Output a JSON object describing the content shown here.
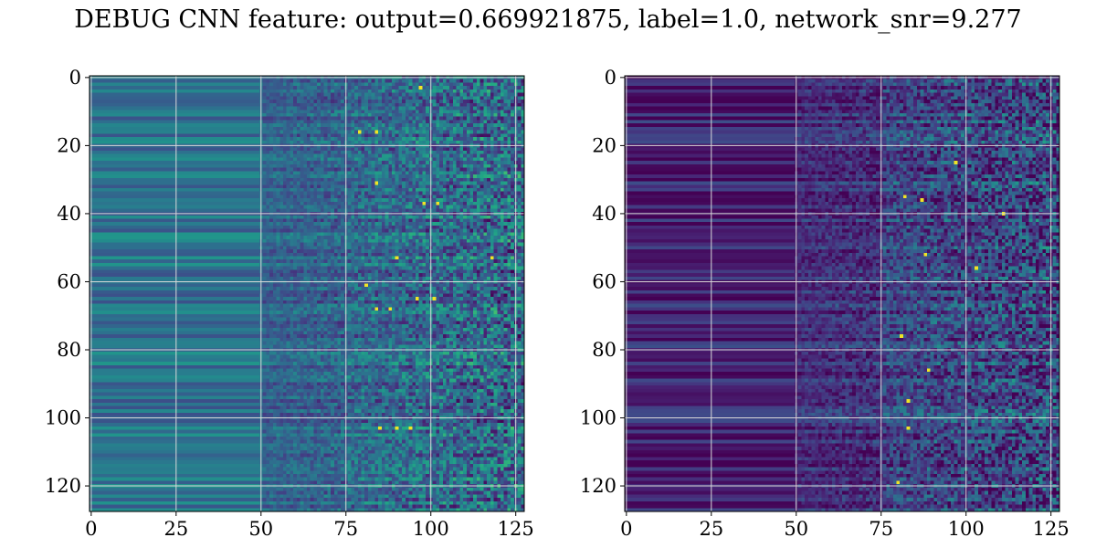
{
  "figure": {
    "title": "DEBUG CNN feature: output=0.669921875, label=1.0, network_snr=9.277"
  },
  "chart_data": [
    {
      "type": "heatmap",
      "colormap": "viridis",
      "rows": 128,
      "cols": 128,
      "xlim": [
        0,
        127
      ],
      "ylim": [
        127,
        0
      ],
      "xticks": [
        0,
        25,
        50,
        75,
        100,
        125
      ],
      "yticks": [
        0,
        20,
        40,
        60,
        80,
        100,
        120
      ],
      "grid": true,
      "grid_color": "#d9d9d9",
      "title": "",
      "xlabel": "",
      "ylabel": "",
      "level_by_column_segment": [
        {
          "x_from": 0,
          "x_to": 50,
          "level": 0.38
        },
        {
          "x_from": 50,
          "x_to": 75,
          "level": 0.32
        },
        {
          "x_from": 75,
          "x_to": 127,
          "level": 0.35
        }
      ],
      "noise_from_x": 50,
      "bright_spots": [
        {
          "x": 79,
          "y": 16
        },
        {
          "x": 84,
          "y": 16
        },
        {
          "x": 84,
          "y": 31
        },
        {
          "x": 98,
          "y": 37
        },
        {
          "x": 102,
          "y": 37
        },
        {
          "x": 81,
          "y": 61
        },
        {
          "x": 96,
          "y": 65
        },
        {
          "x": 101,
          "y": 65
        },
        {
          "x": 84,
          "y": 68
        },
        {
          "x": 88,
          "y": 68
        },
        {
          "x": 85,
          "y": 103
        },
        {
          "x": 90,
          "y": 103
        },
        {
          "x": 94,
          "y": 103
        },
        {
          "x": 90,
          "y": 53
        },
        {
          "x": 118,
          "y": 53
        },
        {
          "x": 97,
          "y": 3
        }
      ]
    },
    {
      "type": "heatmap",
      "colormap": "viridis",
      "rows": 128,
      "cols": 128,
      "xlim": [
        0,
        127
      ],
      "ylim": [
        127,
        0
      ],
      "xticks": [
        0,
        25,
        50,
        75,
        100,
        125
      ],
      "yticks": [
        0,
        20,
        40,
        60,
        80,
        100,
        120
      ],
      "grid": true,
      "grid_color": "#d9d9d9",
      "title": "",
      "xlabel": "",
      "ylabel": "",
      "level_by_column_segment": [
        {
          "x_from": 0,
          "x_to": 50,
          "level": 0.1
        },
        {
          "x_from": 50,
          "x_to": 75,
          "level": 0.14
        },
        {
          "x_from": 75,
          "x_to": 127,
          "level": 0.22
        }
      ],
      "noise_from_x": 50,
      "bright_spots": [
        {
          "x": 97,
          "y": 25
        },
        {
          "x": 82,
          "y": 35
        },
        {
          "x": 87,
          "y": 36
        },
        {
          "x": 88,
          "y": 52
        },
        {
          "x": 81,
          "y": 76
        },
        {
          "x": 89,
          "y": 86
        },
        {
          "x": 83,
          "y": 95
        },
        {
          "x": 83,
          "y": 103
        },
        {
          "x": 80,
          "y": 119
        },
        {
          "x": 103,
          "y": 56
        },
        {
          "x": 111,
          "y": 40
        }
      ]
    }
  ]
}
